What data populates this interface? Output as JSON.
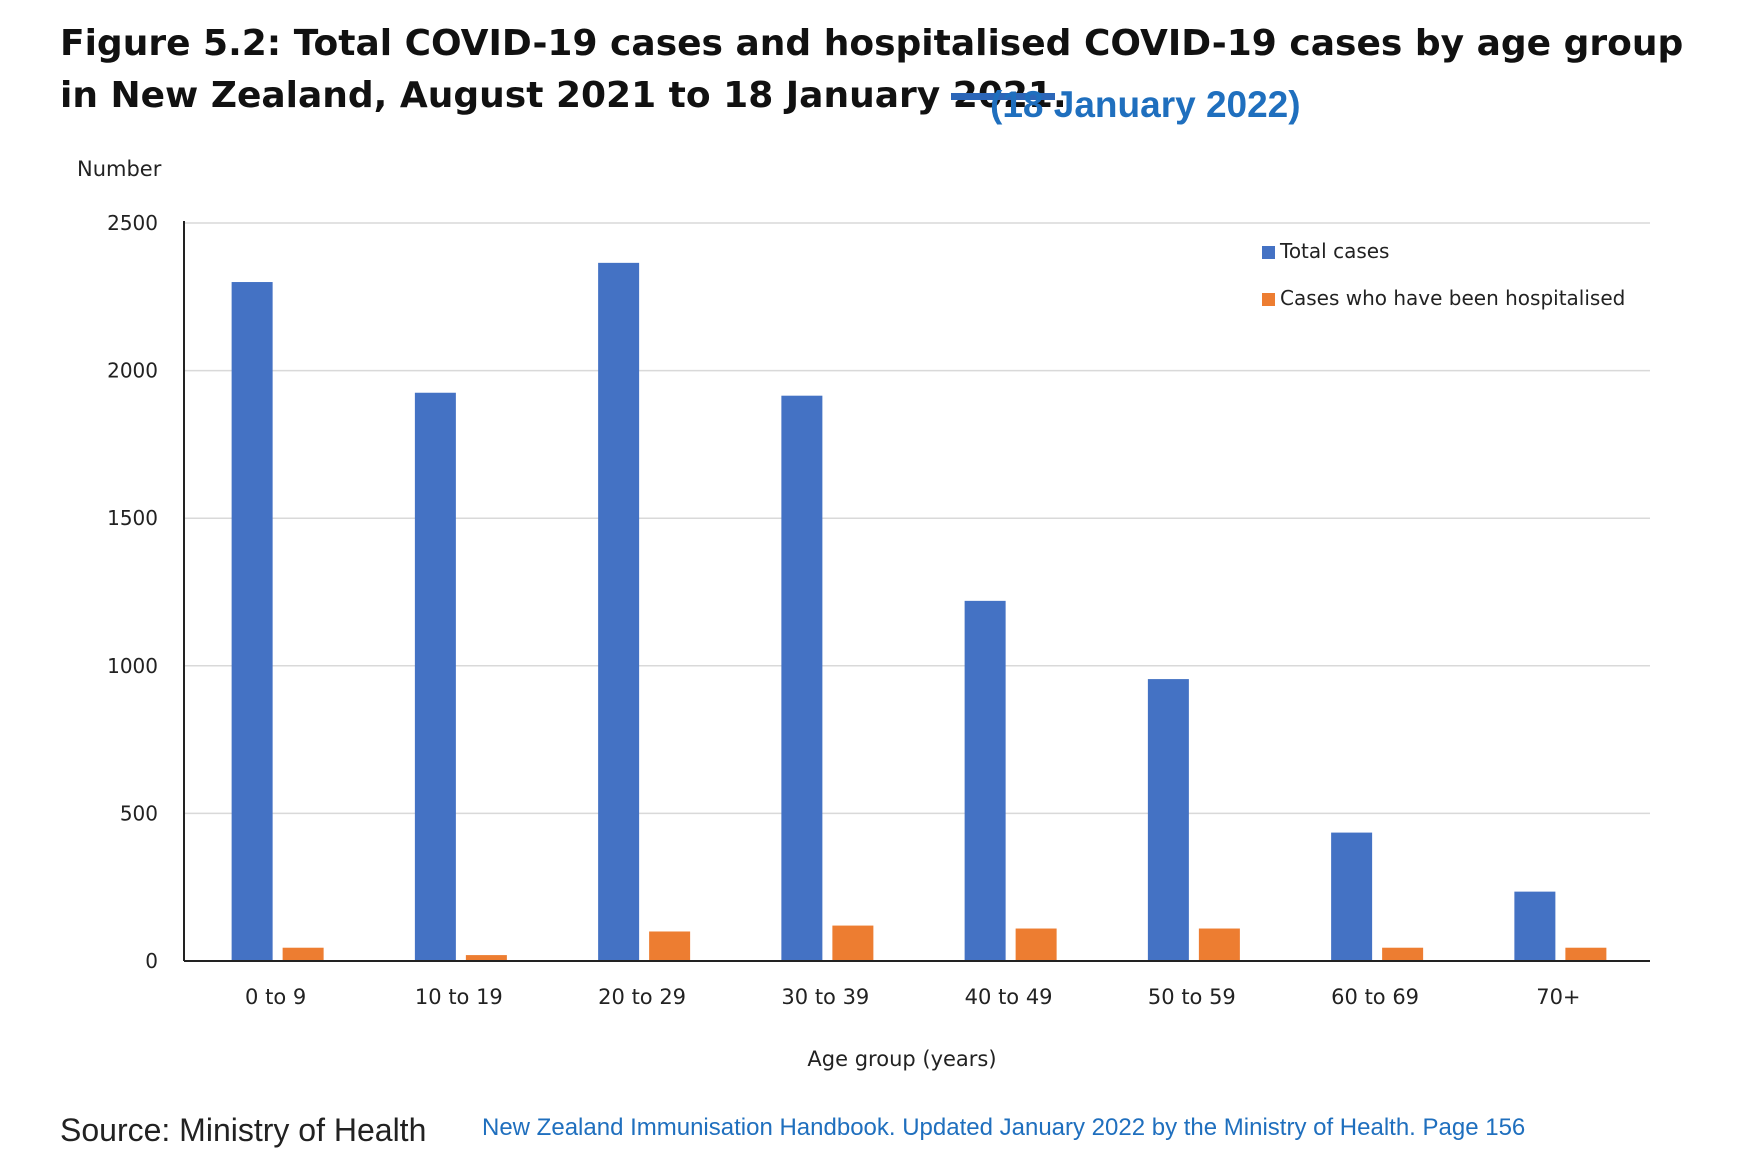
{
  "title": {
    "main": "Figure 5.2: Total COVID-19 cases and hospitalised COVID-19 cases by age group in New Zealand, August 2021 to 18 January ",
    "struck_year": "2021",
    "end": ".",
    "correction": "(18 January 2022)"
  },
  "colors": {
    "total": "#4472c4",
    "hospitalised": "#ed7d31",
    "correction_text": "#1f6fbe",
    "grid": "#d9d9d9"
  },
  "chart_data": {
    "type": "bar",
    "ylabel": "Number",
    "xlabel": "Age group (years)",
    "ylim": [
      0,
      2500
    ],
    "yticks": [
      0,
      500,
      1000,
      1500,
      2000,
      2500
    ],
    "grid": true,
    "legend_position": "top-right",
    "categories": [
      "0 to 9",
      "10 to 19",
      "20 to 29",
      "30 to 39",
      "40 to 49",
      "50 to 59",
      "60 to 69",
      "70+"
    ],
    "series": [
      {
        "name": "Total cases",
        "values": [
          2300,
          1925,
          2365,
          1915,
          1220,
          955,
          435,
          235
        ]
      },
      {
        "name": "Cases who have been hospitalised",
        "values": [
          45,
          20,
          100,
          120,
          110,
          110,
          45,
          45
        ]
      }
    ]
  },
  "footer": {
    "source": "Source: Ministry of Health",
    "citation": "New Zealand Immunisation Handbook. Updated January 2022 by the Ministry of Health. Page 156"
  }
}
